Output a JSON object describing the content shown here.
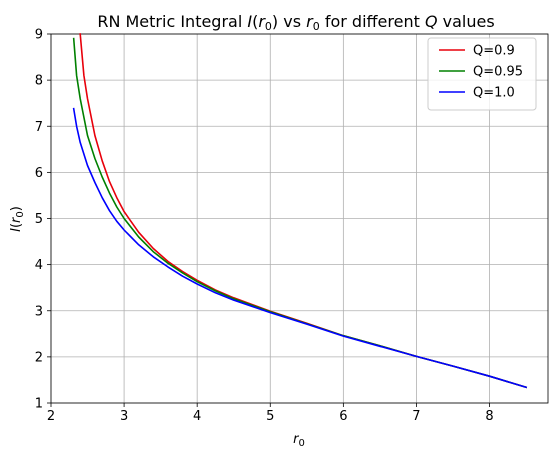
{
  "chart_data": {
    "type": "line",
    "title": {
      "prefix": "RN Metric Integral ",
      "fn": "I",
      "arg_open": "(",
      "var": "r",
      "sub": "0",
      "arg_close": ")",
      "mid": " vs ",
      "var2": "r",
      "sub2": "0",
      "suffix": " for different ",
      "q": "Q",
      "suffix2": " values"
    },
    "xlabel": {
      "var": "r",
      "sub": "0"
    },
    "ylabel": {
      "fn": "I",
      "open": "(",
      "var": "r",
      "sub": "0",
      "close": ")"
    },
    "xlim": [
      2.0,
      8.8
    ],
    "ylim": [
      1,
      9
    ],
    "xticks": [
      "2",
      "3",
      "4",
      "5",
      "6",
      "7",
      "8"
    ],
    "yticks": [
      "1",
      "2",
      "3",
      "4",
      "5",
      "6",
      "7",
      "8",
      "9"
    ],
    "grid": true,
    "legend_position": "top-right",
    "series": [
      {
        "name": "Q=0.9",
        "color": "#e8000b",
        "points": [
          [
            2.4,
            9.0
          ],
          [
            2.45,
            8.1
          ],
          [
            2.5,
            7.6
          ],
          [
            2.6,
            6.8
          ],
          [
            2.7,
            6.25
          ],
          [
            2.8,
            5.8
          ],
          [
            2.9,
            5.45
          ],
          [
            3.0,
            5.15
          ],
          [
            3.2,
            4.7
          ],
          [
            3.4,
            4.35
          ],
          [
            3.6,
            4.07
          ],
          [
            3.8,
            3.85
          ],
          [
            4.0,
            3.66
          ],
          [
            4.25,
            3.45
          ],
          [
            4.5,
            3.28
          ],
          [
            5.0,
            2.99
          ],
          [
            5.5,
            2.73
          ],
          [
            6.0,
            2.46
          ],
          [
            6.5,
            2.24
          ],
          [
            7.0,
            2.01
          ],
          [
            7.5,
            1.8
          ],
          [
            8.0,
            1.58
          ],
          [
            8.5,
            1.34
          ]
        ]
      },
      {
        "name": "Q=0.95",
        "color": "#008000",
        "points": [
          [
            2.31,
            8.9
          ],
          [
            2.35,
            8.1
          ],
          [
            2.4,
            7.6
          ],
          [
            2.5,
            6.8
          ],
          [
            2.6,
            6.3
          ],
          [
            2.7,
            5.9
          ],
          [
            2.8,
            5.55
          ],
          [
            2.9,
            5.25
          ],
          [
            3.0,
            5.0
          ],
          [
            3.2,
            4.6
          ],
          [
            3.4,
            4.28
          ],
          [
            3.6,
            4.03
          ],
          [
            3.8,
            3.82
          ],
          [
            4.0,
            3.63
          ],
          [
            4.25,
            3.43
          ],
          [
            4.5,
            3.26
          ],
          [
            5.0,
            2.98
          ],
          [
            5.5,
            2.72
          ],
          [
            6.0,
            2.46
          ],
          [
            6.5,
            2.24
          ],
          [
            7.0,
            2.01
          ],
          [
            7.5,
            1.8
          ],
          [
            8.0,
            1.58
          ],
          [
            8.5,
            1.34
          ]
        ]
      },
      {
        "name": "Q=1.0",
        "color": "#0000ff",
        "points": [
          [
            2.31,
            7.38
          ],
          [
            2.35,
            7.0
          ],
          [
            2.4,
            6.65
          ],
          [
            2.5,
            6.15
          ],
          [
            2.6,
            5.78
          ],
          [
            2.7,
            5.45
          ],
          [
            2.8,
            5.17
          ],
          [
            2.9,
            4.94
          ],
          [
            3.0,
            4.75
          ],
          [
            3.2,
            4.43
          ],
          [
            3.4,
            4.17
          ],
          [
            3.6,
            3.95
          ],
          [
            3.8,
            3.75
          ],
          [
            4.0,
            3.58
          ],
          [
            4.25,
            3.39
          ],
          [
            4.5,
            3.23
          ],
          [
            5.0,
            2.96
          ],
          [
            5.5,
            2.71
          ],
          [
            6.0,
            2.45
          ],
          [
            6.5,
            2.23
          ],
          [
            7.0,
            2.01
          ],
          [
            7.5,
            1.8
          ],
          [
            8.0,
            1.58
          ],
          [
            8.5,
            1.34
          ]
        ]
      }
    ]
  }
}
